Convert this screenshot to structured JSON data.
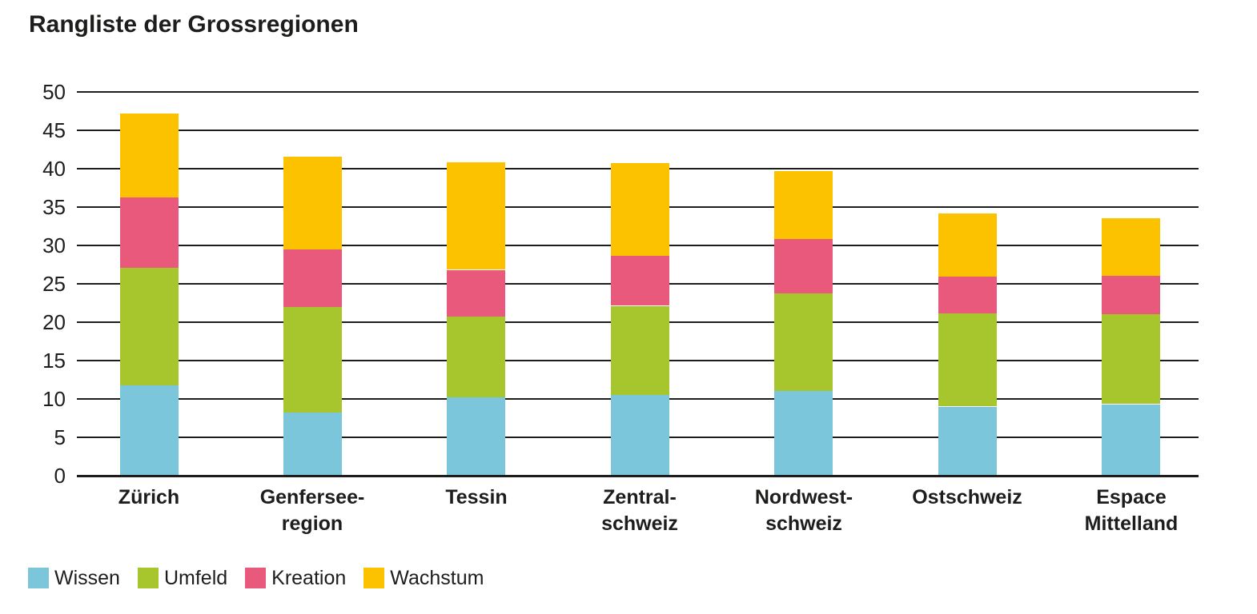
{
  "title": "Rangliste der Grossregionen",
  "colors": {
    "wissen": "#7CC6DC",
    "umfeld": "#A7C62E",
    "kreation": "#E8597B",
    "wachstum": "#FCC200",
    "grid": "#1D1D1B",
    "text": "#1D1D1B",
    "background": "#FFFFFF"
  },
  "chart_data": {
    "type": "bar",
    "stacked": true,
    "title": "Rangliste der Grossregionen",
    "categories": [
      "Zürich",
      "Genferseeregion",
      "Tessin",
      "Zentralschweiz",
      "Nordwestschweiz",
      "Ostschweiz",
      "Espace Mittelland"
    ],
    "category_label_lines": [
      [
        "Zürich"
      ],
      [
        "Genfersee-",
        "region"
      ],
      [
        "Tessin"
      ],
      [
        "Zentral-",
        "schweiz"
      ],
      [
        "Nordwest-",
        "schweiz"
      ],
      [
        "Ostschweiz"
      ],
      [
        "Espace",
        "Mittelland"
      ]
    ],
    "series": [
      {
        "name": "Wissen",
        "color": "#7CC6DC",
        "values": [
          11.8,
          8.3,
          10.2,
          10.5,
          11.0,
          9.0,
          9.3
        ]
      },
      {
        "name": "Umfeld",
        "color": "#A7C62E",
        "values": [
          15.3,
          13.7,
          10.6,
          11.6,
          12.7,
          12.1,
          11.7
        ]
      },
      {
        "name": "Kreation",
        "color": "#E8597B",
        "values": [
          9.2,
          7.5,
          6.0,
          6.5,
          7.1,
          4.9,
          5.0
        ]
      },
      {
        "name": "Wachstum",
        "color": "#FCC200",
        "values": [
          10.9,
          12.1,
          14.0,
          12.1,
          8.9,
          8.2,
          7.5
        ]
      }
    ],
    "stack_totals": [
      47.2,
      41.6,
      40.8,
      40.7,
      39.7,
      34.2,
      33.5
    ],
    "xlabel": "",
    "ylabel": "",
    "y_axis": {
      "min": 0,
      "max": 50,
      "step": 5,
      "tick_labels": [
        "50",
        "45",
        "40",
        "35",
        "30",
        "25",
        "20",
        "15",
        "10",
        "5",
        "0"
      ]
    },
    "grid": "horizontal",
    "legend": {
      "position": "bottom-left",
      "items": [
        "Wissen",
        "Umfeld",
        "Kreation",
        "Wachstum"
      ]
    }
  }
}
